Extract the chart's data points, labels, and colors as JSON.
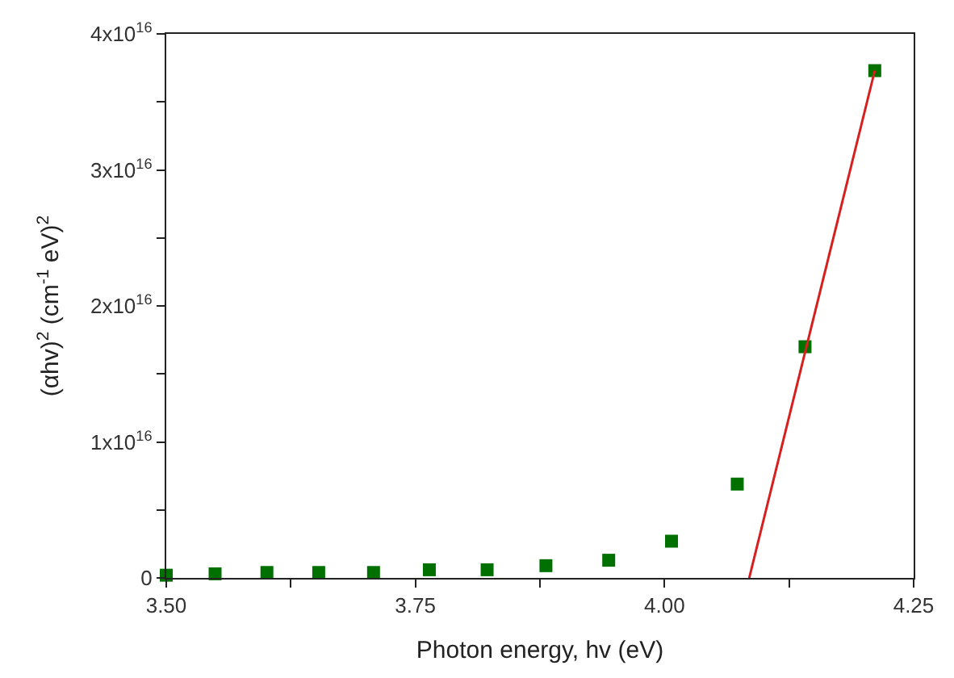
{
  "chart_data": {
    "type": "scatter",
    "xlabel": "Photon energy, hv (eV)",
    "ylabel": "(αhv)$^{2}$ (cm$^{-1}$ eV)$^{2}$",
    "xlim": [
      3.5,
      4.25
    ],
    "ylim": [
      0,
      4e+16
    ],
    "xticks": [
      {
        "value": 3.5,
        "label": "3.50"
      },
      {
        "value": 3.625,
        "label": null
      },
      {
        "value": 3.75,
        "label": "3.75"
      },
      {
        "value": 3.875,
        "label": null
      },
      {
        "value": 4.0,
        "label": "4.00"
      },
      {
        "value": 4.125,
        "label": null
      },
      {
        "value": 4.25,
        "label": "4.25"
      }
    ],
    "yticks": [
      {
        "value": 0,
        "label": "0"
      },
      {
        "value": 5000000000000000.0,
        "label": null
      },
      {
        "value": 1e+16,
        "label": "1x10$^{16}$"
      },
      {
        "value": 1.5e+16,
        "label": null
      },
      {
        "value": 2e+16,
        "label": "2x10$^{16}$"
      },
      {
        "value": 2.5e+16,
        "label": null
      },
      {
        "value": 3e+16,
        "label": "3x10$^{16}$"
      },
      {
        "value": 3.5e+16,
        "label": null
      },
      {
        "value": 4e+16,
        "label": "4x10$^{16}$"
      }
    ],
    "legend": false,
    "series": [
      {
        "color": "#007000",
        "marker": "square",
        "x": [
          3.5,
          3.549,
          3.601,
          3.653,
          3.708,
          3.764,
          3.822,
          3.881,
          3.944,
          4.007,
          4.073,
          4.141,
          4.211
        ],
        "values": [
          200000000000000.0,
          300000000000000.0,
          400000000000000.0,
          400000000000000.0,
          400000000000000.0,
          600000000000000.0,
          600000000000000.0,
          900000000000000.0,
          1300000000000000.0,
          2700000000000000.0,
          6900000000000000.0,
          1.7e+16,
          3.73e+16
        ]
      },
      {
        "type": "line",
        "color": "#d62020",
        "line_style": "solid",
        "x": [
          4.085,
          4.211
        ],
        "values": [
          0,
          3.73e+16
        ]
      }
    ]
  }
}
